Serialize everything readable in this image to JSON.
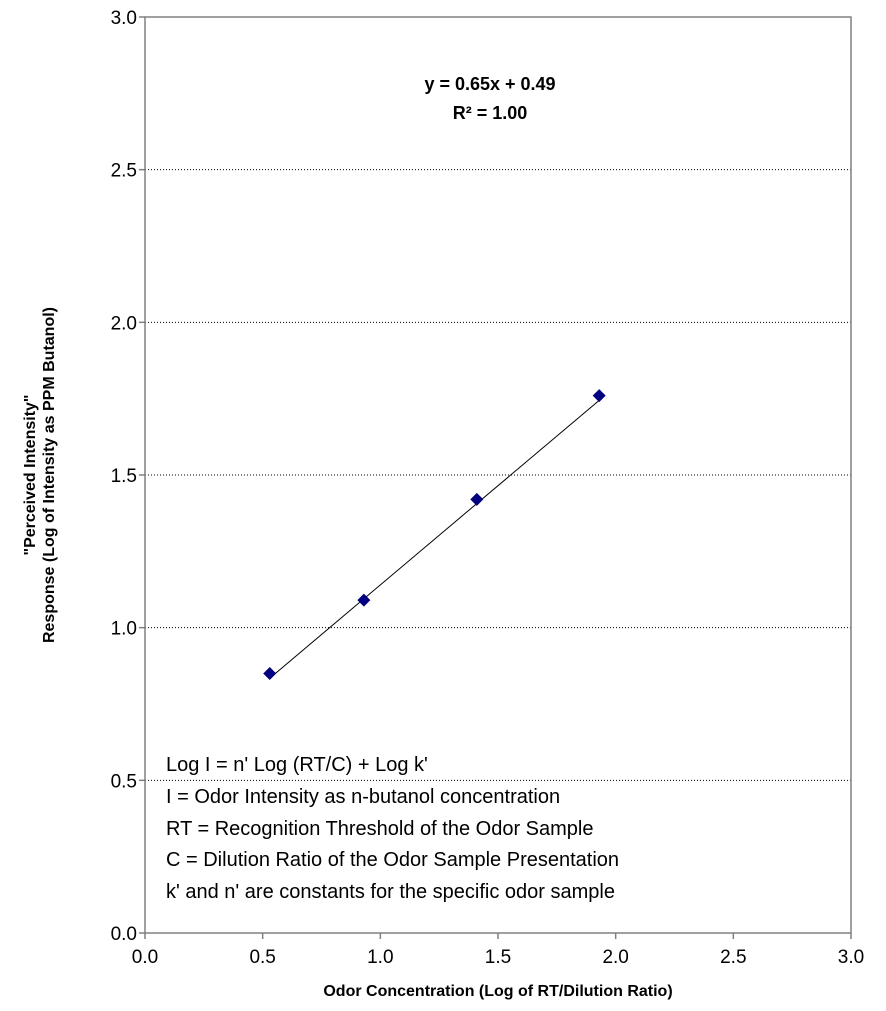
{
  "chart_data": {
    "type": "scatter",
    "title": "",
    "xlabel": "Odor Concentration (Log of RT/Dilution Ratio)",
    "ylabel_lines": [
      "\"Perceived Intensity\"",
      "Response (Log of Intensity as PPM Butanol)"
    ],
    "xlim": [
      0,
      3
    ],
    "ylim": [
      0,
      3
    ],
    "x_ticks": [
      "0.0",
      "0.5",
      "1.0",
      "1.5",
      "2.0",
      "2.5",
      "3.0"
    ],
    "y_ticks": [
      "0.0",
      "0.5",
      "1.0",
      "1.5",
      "2.0",
      "2.5",
      "3.0"
    ],
    "grid": "horizontal",
    "legend": "none",
    "series": [
      {
        "x": [
          0.53,
          0.93,
          1.41,
          1.93
        ],
        "y": [
          0.85,
          1.09,
          1.42,
          1.76
        ],
        "marker": "diamond",
        "color": "#000080"
      }
    ],
    "trendline": {
      "slope": 0.65,
      "intercept": 0.49,
      "x_range": [
        0.53,
        1.93
      ],
      "color": "#000000"
    },
    "annotations": {
      "equation": "y = 0.65x + 0.49",
      "r_squared": "R² = 1.00",
      "notes": [
        "Log I = n' Log (RT/C) + Log k'",
        "I = Odor Intensity as n-butanol concentration",
        "RT = Recognition Threshold of the Odor Sample",
        "C = Dilution Ratio of the Odor Sample Presentation",
        "k' and n' are constants for the specific odor sample"
      ]
    }
  }
}
